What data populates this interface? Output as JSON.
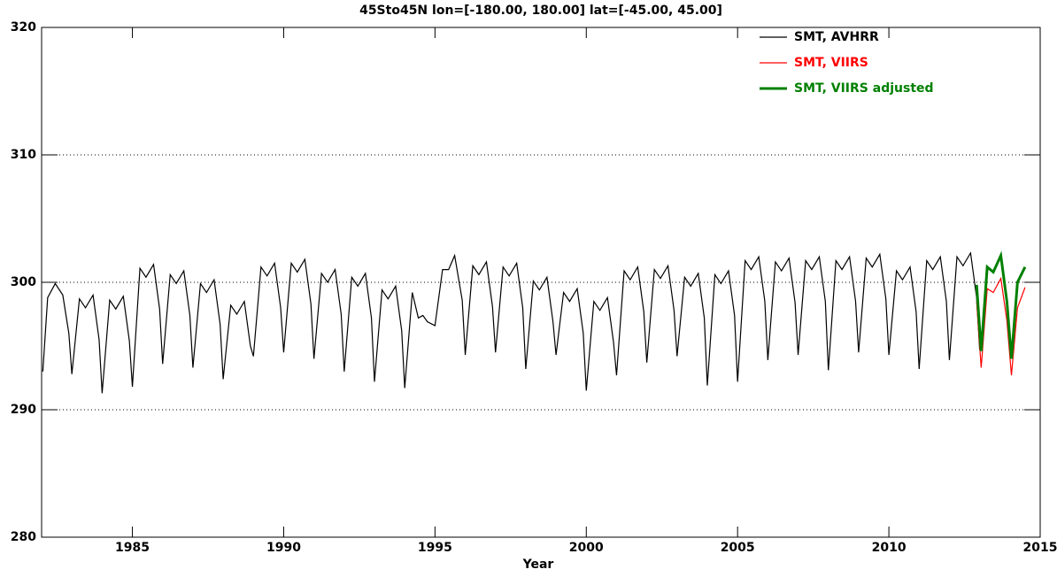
{
  "chart_data": {
    "type": "line",
    "title": "45Sto45N  lon=[-180.00, 180.00] lat=[-45.00, 45.00]",
    "xlabel": "Year",
    "xlim": [
      1982,
      2015
    ],
    "xticks": [
      1985,
      1990,
      1995,
      2000,
      2005,
      2010,
      2015
    ],
    "ylim": [
      280,
      320
    ],
    "yticks": [
      280,
      290,
      300,
      310,
      320
    ],
    "grid": true,
    "legend": "upper right",
    "series": [
      {
        "name": "SMT, AVHRR",
        "color": "#000000",
        "x": [
          1982.04,
          1982.2,
          1982.45,
          1982.7,
          1982.9,
          1983.0,
          1983.25,
          1983.45,
          1983.7,
          1983.9,
          1984.0,
          1984.25,
          1984.45,
          1984.7,
          1984.9,
          1985.0,
          1985.25,
          1985.45,
          1985.7,
          1985.9,
          1986.0,
          1986.25,
          1986.45,
          1986.7,
          1986.9,
          1987.0,
          1987.25,
          1987.45,
          1987.7,
          1987.9,
          1988.0,
          1988.25,
          1988.45,
          1988.7,
          1988.9,
          1989.0,
          1989.25,
          1989.45,
          1989.7,
          1989.9,
          1990.0,
          1990.25,
          1990.45,
          1990.7,
          1990.9,
          1991.0,
          1991.25,
          1991.45,
          1991.7,
          1991.9,
          1992.0,
          1992.25,
          1992.45,
          1992.7,
          1992.9,
          1993.0,
          1993.25,
          1993.45,
          1993.7,
          1993.9,
          1994.0,
          1994.25,
          1994.45,
          1994.6,
          1994.75,
          1995.0,
          1995.25,
          1995.45,
          1995.65,
          1995.9,
          1996.0,
          1996.25,
          1996.45,
          1996.7,
          1996.9,
          1997.0,
          1997.25,
          1997.45,
          1997.7,
          1997.9,
          1998.0,
          1998.25,
          1998.45,
          1998.7,
          1998.9,
          1999.0,
          1999.25,
          1999.45,
          1999.7,
          1999.9,
          2000.0,
          2000.25,
          2000.45,
          2000.7,
          2000.9,
          2001.0,
          2001.25,
          2001.45,
          2001.7,
          2001.9,
          2002.0,
          2002.25,
          2002.45,
          2002.7,
          2002.9,
          2003.0,
          2003.25,
          2003.45,
          2003.7,
          2003.9,
          2004.0,
          2004.25,
          2004.45,
          2004.7,
          2004.9,
          2005.0,
          2005.25,
          2005.45,
          2005.7,
          2005.9,
          2006.0,
          2006.25,
          2006.45,
          2006.7,
          2006.9,
          2007.0,
          2007.25,
          2007.45,
          2007.7,
          2007.9,
          2008.0,
          2008.25,
          2008.45,
          2008.7,
          2008.9,
          2009.0,
          2009.25,
          2009.45,
          2009.7,
          2009.9,
          2010.0,
          2010.25,
          2010.45,
          2010.7,
          2010.9,
          2011.0,
          2011.25,
          2011.45,
          2011.7,
          2011.9,
          2012.0,
          2012.25,
          2012.45,
          2012.7,
          2012.9,
          2013.0
        ],
        "values": [
          293.0,
          298.8,
          299.9,
          299.0,
          296.0,
          292.8,
          298.7,
          298.0,
          299.0,
          295.5,
          291.3,
          298.6,
          297.9,
          298.9,
          295.4,
          291.8,
          301.1,
          300.4,
          301.4,
          297.9,
          293.6,
          300.6,
          299.9,
          300.9,
          297.4,
          293.3,
          299.9,
          299.2,
          300.2,
          296.7,
          292.4,
          298.2,
          297.5,
          298.5,
          295.0,
          294.2,
          301.2,
          300.5,
          301.5,
          298.0,
          294.5,
          301.5,
          300.8,
          301.8,
          298.3,
          294.0,
          300.7,
          300.0,
          301.0,
          297.5,
          293.0,
          300.4,
          299.7,
          300.7,
          297.2,
          292.2,
          299.4,
          298.7,
          299.7,
          296.2,
          291.7,
          299.2,
          297.2,
          297.4,
          296.9,
          296.6,
          301.0,
          301.0,
          302.1,
          298.6,
          294.3,
          301.3,
          300.6,
          301.6,
          298.1,
          294.5,
          301.2,
          300.5,
          301.5,
          298.0,
          293.2,
          300.1,
          299.4,
          300.4,
          296.9,
          294.3,
          299.2,
          298.5,
          299.5,
          296.0,
          291.5,
          298.5,
          297.8,
          298.8,
          295.3,
          292.7,
          300.9,
          300.2,
          301.2,
          297.7,
          293.7,
          301.0,
          300.3,
          301.3,
          297.8,
          294.2,
          300.4,
          299.7,
          300.7,
          297.2,
          291.9,
          300.6,
          299.9,
          300.9,
          297.4,
          292.2,
          301.7,
          301.0,
          302.0,
          298.5,
          293.9,
          301.6,
          300.9,
          301.9,
          298.4,
          294.3,
          301.7,
          301.0,
          302.0,
          298.5,
          293.1,
          301.7,
          301.0,
          302.0,
          298.5,
          294.5,
          301.9,
          301.2,
          302.2,
          298.7,
          294.3,
          300.9,
          300.2,
          301.2,
          297.7,
          293.2,
          301.7,
          301.0,
          302.0,
          298.5,
          293.9,
          302.0,
          301.3,
          302.3,
          298.8,
          294.7
        ]
      },
      {
        "name": "SMT, VIIRS",
        "color": "#ff0000",
        "x": [
          2012.9,
          2013.05,
          2013.25,
          2013.45,
          2013.7,
          2013.9,
          2014.05,
          2014.25,
          2014.5
        ],
        "values": [
          298.5,
          293.3,
          299.5,
          299.2,
          300.3,
          297.0,
          292.7,
          298.0,
          299.6
        ]
      },
      {
        "name": "SMT, VIIRS adjusted",
        "color": "#008000",
        "x": [
          2012.9,
          2013.05,
          2013.25,
          2013.45,
          2013.7,
          2013.9,
          2014.05,
          2014.25,
          2014.5
        ],
        "values": [
          299.8,
          294.6,
          301.2,
          300.8,
          302.1,
          298.5,
          294.0,
          300.0,
          301.2
        ]
      }
    ]
  }
}
